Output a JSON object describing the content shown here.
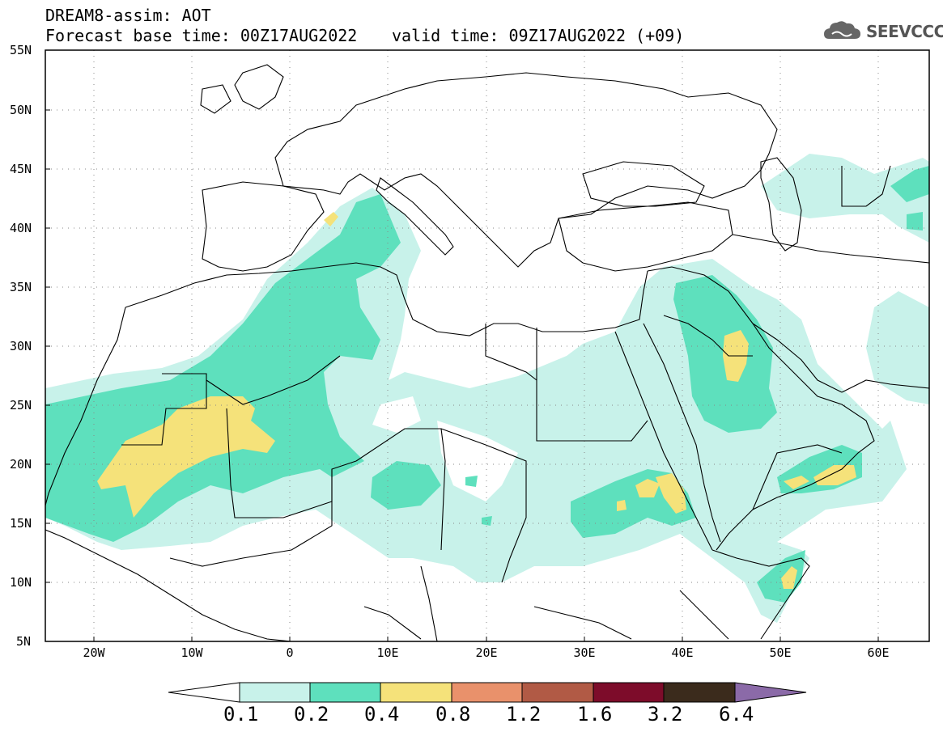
{
  "header": {
    "title": "DREAM8-assim: AOT",
    "base_time": "Forecast base time: 00Z17AUG2022",
    "valid_time": "valid time: 09Z17AUG2022 (+09)",
    "logo_text": "SEEVCCC"
  },
  "map": {
    "projection": "lat-lon",
    "lon_range": [
      -25,
      65
    ],
    "lat_range": [
      5,
      55
    ],
    "lat_labels": [
      "55N",
      "50N",
      "45N",
      "40N",
      "35N",
      "30N",
      "25N",
      "20N",
      "15N",
      "10N",
      "5N"
    ],
    "lon_labels": [
      "20W",
      "10W",
      "0",
      "10E",
      "20E",
      "30E",
      "40E",
      "50E",
      "60E"
    ],
    "grid": "dotted"
  },
  "colorbar": {
    "levels": [
      "0.1",
      "0.2",
      "0.4",
      "0.8",
      "1.2",
      "1.6",
      "3.2",
      "6.4"
    ],
    "colors": [
      "#ffffff",
      "#c8f2ea",
      "#5ee0bd",
      "#f5e27a",
      "#e9916b",
      "#b15a45",
      "#7d0c2a",
      "#3b2b1c",
      "#8b6aa8"
    ],
    "land_outline_color": "#000000"
  }
}
